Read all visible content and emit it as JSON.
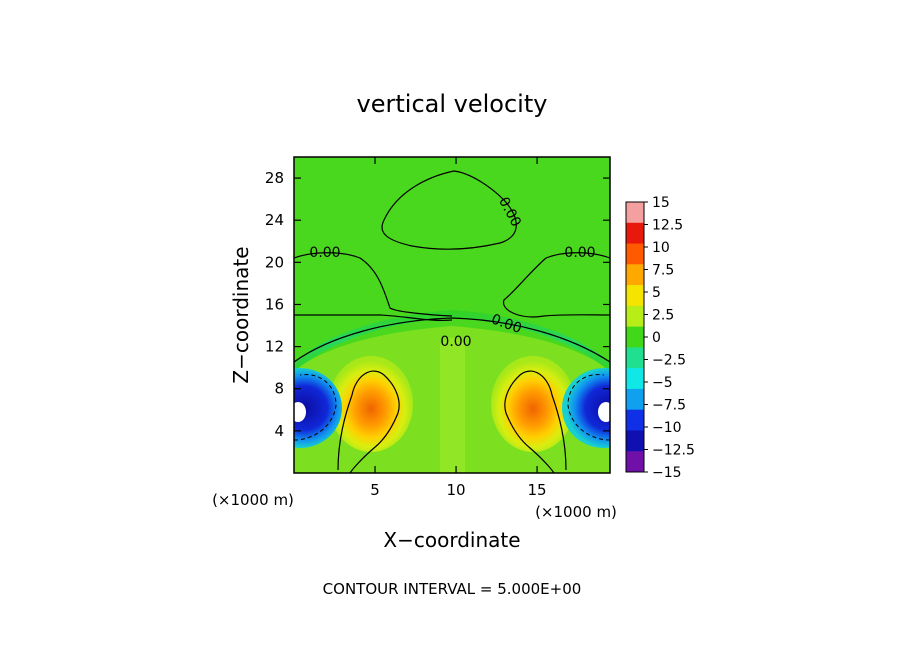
{
  "chart_data": {
    "type": "heatmap",
    "title": "vertical velocity",
    "xlabel": "X−coordinate",
    "ylabel": "Z−coordinate",
    "x_unit": "(×1000 m)",
    "y_unit": "(×1000 m)",
    "xlim": [
      0,
      19.5
    ],
    "ylim": [
      0,
      30
    ],
    "x_ticks": [
      "5",
      "10",
      "15"
    ],
    "x_tick_values": [
      5,
      10,
      15
    ],
    "y_ticks": [
      "4",
      "8",
      "12",
      "16",
      "20",
      "24",
      "28"
    ],
    "y_tick_values": [
      4,
      8,
      12,
      16,
      20,
      24,
      28
    ],
    "colorbar": {
      "levels": [
        "15",
        "12.5",
        "10",
        "7.5",
        "5",
        "2.5",
        "0",
        "−2.5",
        "−5",
        "−7.5",
        "−10",
        "−12.5",
        "−15"
      ],
      "level_values": [
        15,
        12.5,
        10,
        7.5,
        5,
        2.5,
        0,
        -2.5,
        -5,
        -7.5,
        -10,
        -12.5,
        -15
      ],
      "colors": [
        "#f4a0a0",
        "#e8180c",
        "#ff5a00",
        "#ffa800",
        "#f5e400",
        "#b8ee18",
        "#40d818",
        "#20e090",
        "#10e8e8",
        "#10a0f0",
        "#1030e8",
        "#1010b0",
        "#7010a8"
      ]
    },
    "contour_interval": "CONTOUR INTERVAL = 5.000E+00",
    "contour_labels": [
      "0.00",
      "0.00",
      "0.00",
      "0.00",
      "0.00"
    ],
    "features": [
      {
        "kind": "updraft",
        "x": 5.0,
        "z": 6.2,
        "peak": 8
      },
      {
        "kind": "updraft",
        "x": 15.0,
        "z": 6.2,
        "peak": 8
      },
      {
        "kind": "downdraft",
        "x": 0.8,
        "z": 6.2,
        "peak": -15
      },
      {
        "kind": "downdraft",
        "x": 18.7,
        "z": 6.2,
        "peak": -15
      }
    ]
  }
}
